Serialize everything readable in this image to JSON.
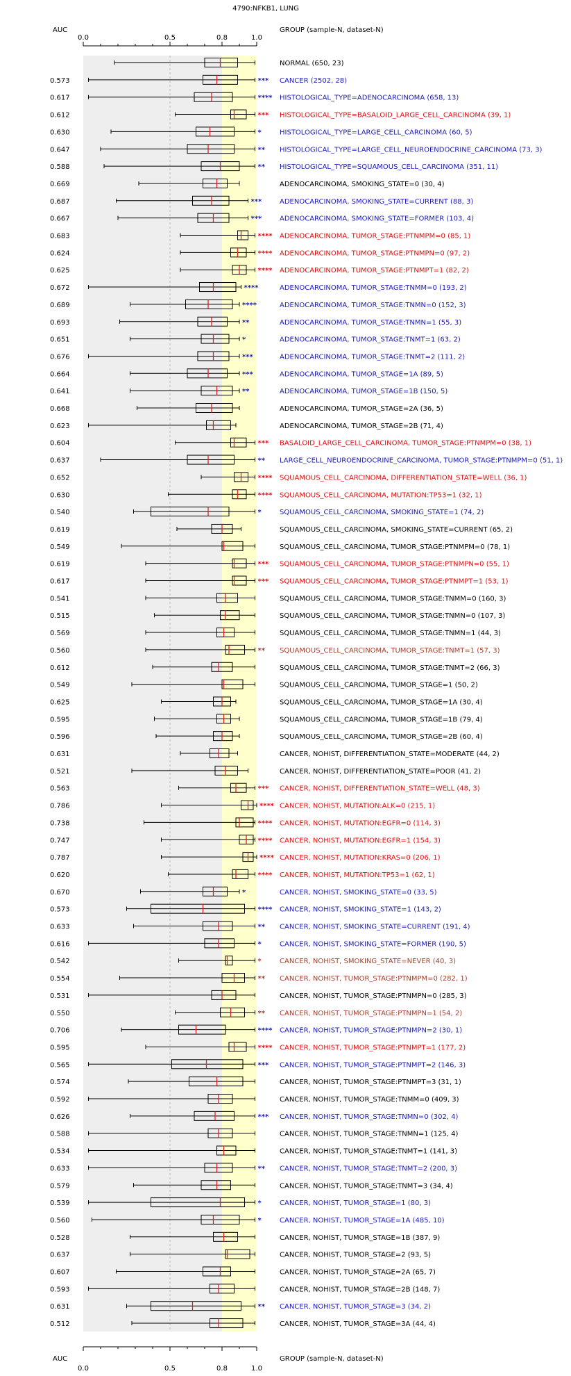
{
  "title": "4790:NFKB1, LUNG",
  "header": {
    "auc_label": "AUC",
    "group_label": "GROUP (sample-N, dataset-N)"
  },
  "footer": {
    "auc_label": "AUC",
    "group_label": "GROUP (sample-N, dataset-N)"
  },
  "colors": {
    "red": "#e01010",
    "blue": "#1a1ab8",
    "brown": "#a0402a",
    "black": "#000000",
    "yellow_band": "#ffffcc",
    "gray_band": "#eeeeee",
    "median": "#e02020"
  },
  "chart_data": {
    "type": "boxplot",
    "title": "4790:NFKB1, LUNG",
    "xlabel": "AUC",
    "xlim": [
      0,
      1
    ],
    "x_ticks": [
      "0.0",
      "0.5",
      "0.8",
      "1.0"
    ],
    "row_fields": [
      "label",
      "auc",
      "min",
      "q1",
      "median",
      "q3",
      "max",
      "stars",
      "color"
    ],
    "rows": [
      [
        "NORMAL (650, 23)",
        "",
        0.18,
        0.7,
        0.79,
        0.89,
        0.99,
        "",
        "black"
      ],
      [
        "CANCER (2502, 28)",
        "0.573",
        0.03,
        0.69,
        0.77,
        0.89,
        0.99,
        "***",
        "blue"
      ],
      [
        "HISTOLOGICAL_TYPE=ADENOCARCINOMA (658, 13)",
        "0.617",
        0.03,
        0.64,
        0.74,
        0.86,
        0.99,
        "****",
        "blue"
      ],
      [
        "HISTOLOGICAL_TYPE=BASALOID_LARGE_CELL_CARCINOMA (39, 1)",
        "0.612",
        0.53,
        0.85,
        0.87,
        0.94,
        0.99,
        "***",
        "red"
      ],
      [
        "HISTOLOGICAL_TYPE=LARGE_CELL_CARCINOMA (60, 5)",
        "0.630",
        0.16,
        0.65,
        0.73,
        0.87,
        0.99,
        "*",
        "blue"
      ],
      [
        "HISTOLOGICAL_TYPE=LARGE_CELL_NEUROENDOCRINE_CARCINOMA (73, 3)",
        "0.647",
        0.1,
        0.6,
        0.72,
        0.87,
        0.99,
        "**",
        "blue"
      ],
      [
        "HISTOLOGICAL_TYPE=SQUAMOUS_CELL_CARCINOMA (351, 11)",
        "0.588",
        0.12,
        0.68,
        0.79,
        0.9,
        0.99,
        "**",
        "blue"
      ],
      [
        "ADENOCARCINOMA, SMOKING_STATE=0 (30, 4)",
        "0.669",
        0.32,
        0.69,
        0.77,
        0.83,
        0.9,
        "",
        "black"
      ],
      [
        "ADENOCARCINOMA, SMOKING_STATE=CURRENT (88, 3)",
        "0.687",
        0.19,
        0.63,
        0.74,
        0.84,
        0.95,
        "***",
        "blue"
      ],
      [
        "ADENOCARCINOMA, SMOKING_STATE=FORMER (103, 4)",
        "0.667",
        0.2,
        0.66,
        0.75,
        0.84,
        0.95,
        "***",
        "blue"
      ],
      [
        "ADENOCARCINOMA, TUMOR_STAGE:PTNMPM=0 (85, 1)",
        "0.683",
        0.56,
        0.89,
        0.91,
        0.95,
        0.99,
        "****",
        "red"
      ],
      [
        "ADENOCARCINOMA, TUMOR_STAGE:PTNMPN=0 (97, 2)",
        "0.624",
        0.56,
        0.85,
        0.89,
        0.94,
        0.99,
        "****",
        "red"
      ],
      [
        "ADENOCARCINOMA, TUMOR_STAGE:PTNMPT=1 (82, 2)",
        "0.625",
        0.56,
        0.86,
        0.9,
        0.94,
        0.99,
        "****",
        "red"
      ],
      [
        "ADENOCARCINOMA, TUMOR_STAGE:TNMM=0 (193, 2)",
        "0.672",
        0.03,
        0.67,
        0.75,
        0.88,
        0.91,
        "****",
        "blue"
      ],
      [
        "ADENOCARCINOMA, TUMOR_STAGE:TNMN=0 (152, 3)",
        "0.689",
        0.27,
        0.59,
        0.72,
        0.86,
        0.9,
        "****",
        "blue"
      ],
      [
        "ADENOCARCINOMA, TUMOR_STAGE:TNMN=1 (55, 3)",
        "0.693",
        0.21,
        0.66,
        0.74,
        0.83,
        0.9,
        "**",
        "blue"
      ],
      [
        "ADENOCARCINOMA, TUMOR_STAGE:TNMT=1 (63, 2)",
        "0.651",
        0.27,
        0.68,
        0.75,
        0.84,
        0.9,
        "*",
        "blue"
      ],
      [
        "ADENOCARCINOMA, TUMOR_STAGE:TNMT=2 (111, 2)",
        "0.676",
        0.03,
        0.66,
        0.75,
        0.84,
        0.9,
        "***",
        "blue"
      ],
      [
        "ADENOCARCINOMA, TUMOR_STAGE=1A (89, 5)",
        "0.664",
        0.27,
        0.6,
        0.72,
        0.83,
        0.9,
        "***",
        "blue"
      ],
      [
        "ADENOCARCINOMA, TUMOR_STAGE=1B (150, 5)",
        "0.641",
        0.27,
        0.68,
        0.77,
        0.86,
        0.9,
        "**",
        "blue"
      ],
      [
        "ADENOCARCINOMA, TUMOR_STAGE=2A (36, 5)",
        "0.668",
        0.31,
        0.65,
        0.74,
        0.86,
        0.9,
        "",
        "black"
      ],
      [
        "ADENOCARCINOMA, TUMOR_STAGE=2B (71, 4)",
        "0.623",
        0.03,
        0.71,
        0.75,
        0.85,
        0.88,
        "",
        "black"
      ],
      [
        "BASALOID_LARGE_CELL_CARCINOMA, TUMOR_STAGE:PTNMPM=0 (38, 1)",
        "0.604",
        0.53,
        0.85,
        0.87,
        0.94,
        0.99,
        "***",
        "red"
      ],
      [
        "LARGE_CELL_NEUROENDOCRINE_CARCINOMA, TUMOR_STAGE:PTNMPM=0 (51, 1)",
        "0.637",
        0.1,
        0.6,
        0.72,
        0.87,
        0.99,
        "**",
        "blue"
      ],
      [
        "SQUAMOUS_CELL_CARCINOMA, DIFFERENTIATION_STATE=WELL (36, 1)",
        "0.652",
        0.68,
        0.87,
        0.91,
        0.95,
        0.99,
        "****",
        "red"
      ],
      [
        "SQUAMOUS_CELL_CARCINOMA, MUTATION:TP53=1 (32, 1)",
        "0.630",
        0.49,
        0.86,
        0.89,
        0.94,
        0.99,
        "****",
        "red"
      ],
      [
        "SQUAMOUS_CELL_CARCINOMA, SMOKING_STATE=1 (74, 2)",
        "0.540",
        0.29,
        0.39,
        0.72,
        0.84,
        0.99,
        "*",
        "blue"
      ],
      [
        "SQUAMOUS_CELL_CARCINOMA, SMOKING_STATE=CURRENT (65, 2)",
        "0.619",
        0.54,
        0.74,
        0.8,
        0.86,
        0.91,
        "",
        "black"
      ],
      [
        "SQUAMOUS_CELL_CARCINOMA, TUMOR_STAGE:PTNMPM=0 (78, 1)",
        "0.549",
        0.22,
        0.8,
        0.81,
        0.92,
        0.99,
        "",
        "black"
      ],
      [
        "SQUAMOUS_CELL_CARCINOMA, TUMOR_STAGE:PTNMPN=0 (55, 1)",
        "0.619",
        0.36,
        0.86,
        0.87,
        0.94,
        0.99,
        "***",
        "red"
      ],
      [
        "SQUAMOUS_CELL_CARCINOMA, TUMOR_STAGE:PTNMPT=1 (53, 1)",
        "0.617",
        0.36,
        0.86,
        0.87,
        0.94,
        0.99,
        "***",
        "red"
      ],
      [
        "SQUAMOUS_CELL_CARCINOMA, TUMOR_STAGE:TNMM=0 (160, 3)",
        "0.541",
        0.36,
        0.77,
        0.82,
        0.89,
        0.99,
        "",
        "black"
      ],
      [
        "SQUAMOUS_CELL_CARCINOMA, TUMOR_STAGE:TNMN=0 (107, 3)",
        "0.515",
        0.41,
        0.79,
        0.82,
        0.9,
        0.99,
        "",
        "black"
      ],
      [
        "SQUAMOUS_CELL_CARCINOMA, TUMOR_STAGE:TNMN=1 (44, 3)",
        "0.569",
        0.36,
        0.77,
        0.81,
        0.87,
        0.99,
        "",
        "black"
      ],
      [
        "SQUAMOUS_CELL_CARCINOMA, TUMOR_STAGE:TNMT=1 (57, 3)",
        "0.560",
        0.36,
        0.82,
        0.84,
        0.93,
        0.99,
        "**",
        "brown"
      ],
      [
        "SQUAMOUS_CELL_CARCINOMA, TUMOR_STAGE:TNMT=2 (66, 3)",
        "0.612",
        0.4,
        0.74,
        0.78,
        0.86,
        0.99,
        "",
        "black"
      ],
      [
        "SQUAMOUS_CELL_CARCINOMA, TUMOR_STAGE=1 (50, 2)",
        "0.549",
        0.28,
        0.8,
        0.81,
        0.92,
        0.99,
        "",
        "black"
      ],
      [
        "SQUAMOUS_CELL_CARCINOMA, TUMOR_STAGE=1A (30, 4)",
        "0.625",
        0.45,
        0.75,
        0.8,
        0.85,
        0.88,
        "",
        "black"
      ],
      [
        "SQUAMOUS_CELL_CARCINOMA, TUMOR_STAGE=1B (79, 4)",
        "0.595",
        0.41,
        0.77,
        0.81,
        0.85,
        0.9,
        "",
        "black"
      ],
      [
        "SQUAMOUS_CELL_CARCINOMA, TUMOR_STAGE=2B (60, 4)",
        "0.596",
        0.42,
        0.75,
        0.8,
        0.86,
        0.9,
        "",
        "black"
      ],
      [
        "CANCER, NOHIST, DIFFERENTIATION_STATE=MODERATE (44, 2)",
        "0.631",
        0.56,
        0.73,
        0.78,
        0.84,
        0.89,
        "",
        "black"
      ],
      [
        "CANCER, NOHIST, DIFFERENTIATION_STATE=POOR (41, 2)",
        "0.521",
        0.28,
        0.76,
        0.82,
        0.89,
        0.95,
        "",
        "black"
      ],
      [
        "CANCER, NOHIST, DIFFERENTIATION_STATE=WELL (48, 3)",
        "0.563",
        0.55,
        0.85,
        0.88,
        0.94,
        0.99,
        "***",
        "red"
      ],
      [
        "CANCER, NOHIST, MUTATION:ALK=0 (215, 1)",
        "0.786",
        0.45,
        0.91,
        0.95,
        0.98,
        1.0,
        "****",
        "red"
      ],
      [
        "CANCER, NOHIST, MUTATION:EGFR=0 (114, 3)",
        "0.738",
        0.35,
        0.88,
        0.9,
        0.98,
        0.99,
        "****",
        "red"
      ],
      [
        "CANCER, NOHIST, MUTATION:EGFR=1 (154, 3)",
        "0.747",
        0.45,
        0.9,
        0.94,
        0.98,
        0.99,
        "****",
        "red"
      ],
      [
        "CANCER, NOHIST, MUTATION:KRAS=0 (206, 1)",
        "0.787",
        0.45,
        0.92,
        0.95,
        0.98,
        1.0,
        "****",
        "red"
      ],
      [
        "CANCER, NOHIST, MUTATION:TP53=1 (62, 1)",
        "0.620",
        0.49,
        0.86,
        0.88,
        0.95,
        0.99,
        "****",
        "red"
      ],
      [
        "CANCER, NOHIST, SMOKING_STATE=0 (33, 5)",
        "0.670",
        0.33,
        0.69,
        0.75,
        0.83,
        0.9,
        "*",
        "blue"
      ],
      [
        "CANCER, NOHIST, SMOKING_STATE=1 (143, 2)",
        "0.573",
        0.25,
        0.39,
        0.69,
        0.93,
        0.99,
        "****",
        "blue"
      ],
      [
        "CANCER, NOHIST, SMOKING_STATE=CURRENT (191, 4)",
        "0.633",
        0.29,
        0.69,
        0.78,
        0.86,
        0.99,
        "**",
        "blue"
      ],
      [
        "CANCER, NOHIST, SMOKING_STATE=FORMER (190, 5)",
        "0.616",
        0.03,
        0.7,
        0.78,
        0.87,
        0.99,
        "*",
        "blue"
      ],
      [
        "CANCER, NOHIST, SMOKING_STATE=NEVER (40, 3)",
        "0.542",
        0.55,
        0.82,
        0.83,
        0.86,
        0.99,
        "*",
        "brown"
      ],
      [
        "CANCER, NOHIST, TUMOR_STAGE:PTNMPM=0 (282, 1)",
        "0.554",
        0.21,
        0.8,
        0.87,
        0.93,
        0.99,
        "**",
        "brown"
      ],
      [
        "CANCER, NOHIST, TUMOR_STAGE:PTNMPN=0 (285, 3)",
        "0.531",
        0.03,
        0.74,
        0.8,
        0.88,
        0.99,
        "",
        "black"
      ],
      [
        "CANCER, NOHIST, TUMOR_STAGE:PTNMPN=1 (54, 2)",
        "0.550",
        0.53,
        0.79,
        0.85,
        0.93,
        0.99,
        "**",
        "brown"
      ],
      [
        "CANCER, NOHIST, TUMOR_STAGE:PTNMPN=2 (30, 1)",
        "0.706",
        0.22,
        0.55,
        0.65,
        0.82,
        0.99,
        "****",
        "blue"
      ],
      [
        "CANCER, NOHIST, TUMOR_STAGE:PTNMPT=1 (177, 2)",
        "0.595",
        0.36,
        0.84,
        0.87,
        0.94,
        0.99,
        "****",
        "red"
      ],
      [
        "CANCER, NOHIST, TUMOR_STAGE:PTNMPT=2 (146, 3)",
        "0.565",
        0.03,
        0.51,
        0.71,
        0.92,
        0.99,
        "***",
        "blue"
      ],
      [
        "CANCER, NOHIST, TUMOR_STAGE:PTNMPT=3 (31, 1)",
        "0.574",
        0.26,
        0.61,
        0.77,
        0.92,
        0.99,
        "",
        "black"
      ],
      [
        "CANCER, NOHIST, TUMOR_STAGE:TNMM=0 (409, 3)",
        "0.592",
        0.03,
        0.72,
        0.78,
        0.86,
        0.99,
        "",
        "black"
      ],
      [
        "CANCER, NOHIST, TUMOR_STAGE:TNMN=0 (302, 4)",
        "0.626",
        0.27,
        0.64,
        0.76,
        0.87,
        0.99,
        "***",
        "blue"
      ],
      [
        "CANCER, NOHIST, TUMOR_STAGE:TNMN=1 (125, 4)",
        "0.588",
        0.03,
        0.72,
        0.78,
        0.86,
        0.99,
        "",
        "black"
      ],
      [
        "CANCER, NOHIST, TUMOR_STAGE:TNMT=1 (141, 3)",
        "0.534",
        0.03,
        0.77,
        0.81,
        0.88,
        0.99,
        "",
        "black"
      ],
      [
        "CANCER, NOHIST, TUMOR_STAGE:TNMT=2 (200, 3)",
        "0.633",
        0.03,
        0.7,
        0.77,
        0.86,
        0.99,
        "**",
        "blue"
      ],
      [
        "CANCER, NOHIST, TUMOR_STAGE:TNMT=3 (34, 4)",
        "0.579",
        0.29,
        0.68,
        0.77,
        0.85,
        0.99,
        "",
        "black"
      ],
      [
        "CANCER, NOHIST, TUMOR_STAGE=1 (80, 3)",
        "0.539",
        0.03,
        0.39,
        0.79,
        0.93,
        0.99,
        "*",
        "blue"
      ],
      [
        "CANCER, NOHIST, TUMOR_STAGE=1A (485, 10)",
        "0.560",
        0.05,
        0.68,
        0.75,
        0.9,
        0.99,
        "*",
        "blue"
      ],
      [
        "CANCER, NOHIST, TUMOR_STAGE=1B (387, 9)",
        "0.528",
        0.27,
        0.75,
        0.81,
        0.89,
        0.99,
        "",
        "black"
      ],
      [
        "CANCER, NOHIST, TUMOR_STAGE=2 (93, 5)",
        "0.637",
        0.27,
        0.82,
        0.83,
        0.96,
        0.99,
        "",
        "black"
      ],
      [
        "CANCER, NOHIST, TUMOR_STAGE=2A (65, 7)",
        "0.607",
        0.19,
        0.69,
        0.79,
        0.85,
        0.99,
        "",
        "black"
      ],
      [
        "CANCER, NOHIST, TUMOR_STAGE=2B (148, 7)",
        "0.593",
        0.03,
        0.73,
        0.78,
        0.87,
        0.99,
        "",
        "black"
      ],
      [
        "CANCER, NOHIST, TUMOR_STAGE=3 (34, 2)",
        "0.631",
        0.25,
        0.39,
        0.63,
        0.91,
        0.99,
        "**",
        "blue"
      ],
      [
        "CANCER, NOHIST, TUMOR_STAGE=3A (44, 4)",
        "0.512",
        0.28,
        0.73,
        0.78,
        0.92,
        0.99,
        "",
        "black"
      ]
    ]
  }
}
